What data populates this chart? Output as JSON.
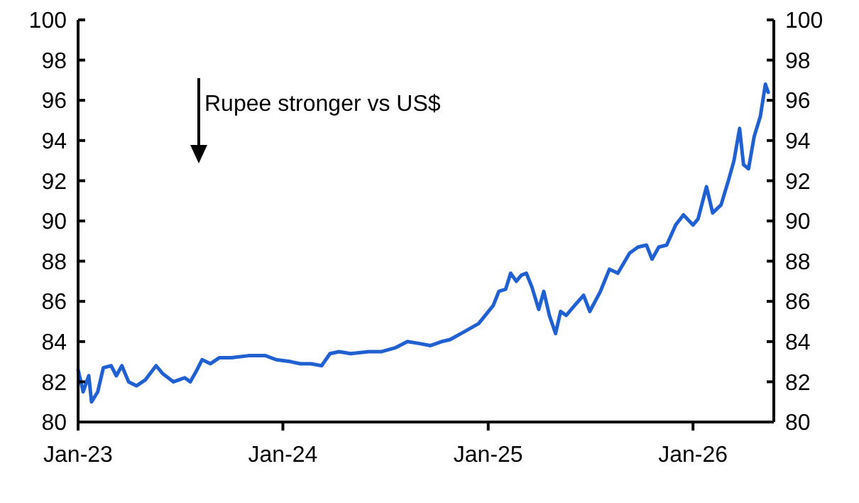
{
  "chart_data": {
    "type": "line",
    "annotations": [
      "Rupee stronger vs US$"
    ],
    "xlim": [
      "2023-01-01",
      "2026-05-25"
    ],
    "xticks": [
      {
        "value": "2023-01-01",
        "label": "Jan-23"
      },
      {
        "value": "2024-01-01",
        "label": "Jan-24"
      },
      {
        "value": "2025-01-01",
        "label": "Jan-25"
      },
      {
        "value": "2026-01-01",
        "label": "Jan-26"
      }
    ],
    "ylim": [
      80,
      100
    ],
    "yticks": [
      80,
      82,
      84,
      86,
      88,
      90,
      92,
      94,
      96,
      98,
      100
    ],
    "y2lim": [
      80,
      100
    ],
    "y2ticks": [
      80,
      82,
      84,
      86,
      88,
      90,
      92,
      94,
      96,
      98,
      100
    ],
    "x": [
      "2023-01-01",
      "2023-01-10",
      "2023-01-20",
      "2023-01-25",
      "2023-02-05",
      "2023-02-15",
      "2023-03-01",
      "2023-03-10",
      "2023-03-20",
      "2023-04-01",
      "2023-04-15",
      "2023-05-01",
      "2023-05-20",
      "2023-06-01",
      "2023-06-20",
      "2023-07-10",
      "2023-07-20",
      "2023-08-01",
      "2023-08-10",
      "2023-08-25",
      "2023-09-10",
      "2023-10-01",
      "2023-11-01",
      "2023-12-01",
      "2023-12-20",
      "2024-01-15",
      "2024-02-01",
      "2024-02-20",
      "2024-03-10",
      "2024-03-25",
      "2024-04-10",
      "2024-05-01",
      "2024-06-01",
      "2024-06-25",
      "2024-07-20",
      "2024-08-10",
      "2024-09-01",
      "2024-09-20",
      "2024-10-10",
      "2024-10-25",
      "2024-11-20",
      "2024-12-15",
      "2025-01-10",
      "2025-01-20",
      "2025-02-01",
      "2025-02-10",
      "2025-02-20",
      "2025-03-01",
      "2025-03-10",
      "2025-03-20",
      "2025-04-01",
      "2025-04-10",
      "2025-04-20",
      "2025-05-01",
      "2025-05-10",
      "2025-05-20",
      "2025-06-01",
      "2025-06-20",
      "2025-07-01",
      "2025-07-20",
      "2025-08-05",
      "2025-08-20",
      "2025-09-10",
      "2025-09-25",
      "2025-10-10",
      "2025-10-20",
      "2025-11-01",
      "2025-11-15",
      "2025-12-01",
      "2025-12-15",
      "2026-01-01",
      "2026-01-10",
      "2026-01-25",
      "2026-02-05",
      "2026-02-20",
      "2026-03-05",
      "2026-03-15",
      "2026-03-25",
      "2026-04-01",
      "2026-04-10",
      "2026-04-20",
      "2026-05-01",
      "2026-05-10",
      "2026-05-15"
    ],
    "series": [
      {
        "color": "#2060d0",
        "values": [
          82.6,
          81.5,
          82.3,
          81.0,
          81.5,
          82.7,
          82.8,
          82.3,
          82.8,
          82.0,
          81.8,
          82.1,
          82.8,
          82.4,
          82.0,
          82.2,
          82.0,
          82.6,
          83.1,
          82.9,
          83.2,
          83.2,
          83.3,
          83.3,
          83.1,
          83.0,
          82.9,
          82.9,
          82.8,
          83.4,
          83.5,
          83.4,
          83.5,
          83.5,
          83.7,
          84.0,
          83.9,
          83.8,
          84.0,
          84.1,
          84.5,
          84.9,
          85.8,
          86.5,
          86.6,
          87.4,
          87.0,
          87.3,
          87.4,
          86.7,
          85.6,
          86.5,
          85.3,
          84.4,
          85.5,
          85.3,
          85.7,
          86.3,
          85.5,
          86.5,
          87.6,
          87.4,
          88.4,
          88.7,
          88.8,
          88.1,
          88.7,
          88.8,
          89.8,
          90.3,
          89.8,
          90.1,
          91.7,
          90.4,
          90.8,
          92.0,
          93.0,
          94.6,
          92.8,
          92.6,
          94.2,
          95.2,
          96.8,
          96.4
        ]
      }
    ]
  }
}
